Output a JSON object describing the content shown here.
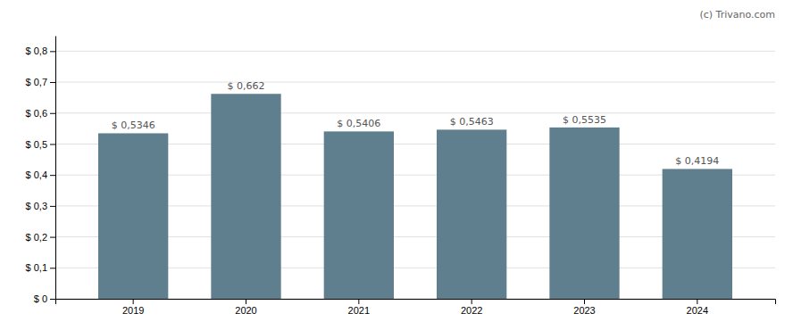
{
  "chart_data": {
    "type": "bar",
    "categories": [
      "2019",
      "2020",
      "2021",
      "2022",
      "2023",
      "2024"
    ],
    "values": [
      0.5346,
      0.662,
      0.5406,
      0.5463,
      0.5535,
      0.4194
    ],
    "value_labels": [
      "$ 0,5346",
      "$ 0,662",
      "$ 0,5406",
      "$ 0,5463",
      "$ 0,5535",
      "$ 0,4194"
    ],
    "data_labels": true,
    "color": "#5f7f8f",
    "ylim": [
      0,
      0.85
    ],
    "yticks": [
      {
        "value": 0,
        "label": "$ 0"
      },
      {
        "value": 0.1,
        "label": "$ 0,1"
      },
      {
        "value": 0.2,
        "label": "$ 0,2"
      },
      {
        "value": 0.3,
        "label": "$ 0,3"
      },
      {
        "value": 0.4,
        "label": "$ 0,4"
      },
      {
        "value": 0.5,
        "label": "$ 0,5"
      },
      {
        "value": 0.6,
        "label": "$ 0,6"
      },
      {
        "value": 0.7,
        "label": "$ 0,7"
      },
      {
        "value": 0.8,
        "label": "$ 0,8"
      }
    ],
    "grid": true,
    "annotations": [
      "(c) Trivano.com"
    ]
  }
}
